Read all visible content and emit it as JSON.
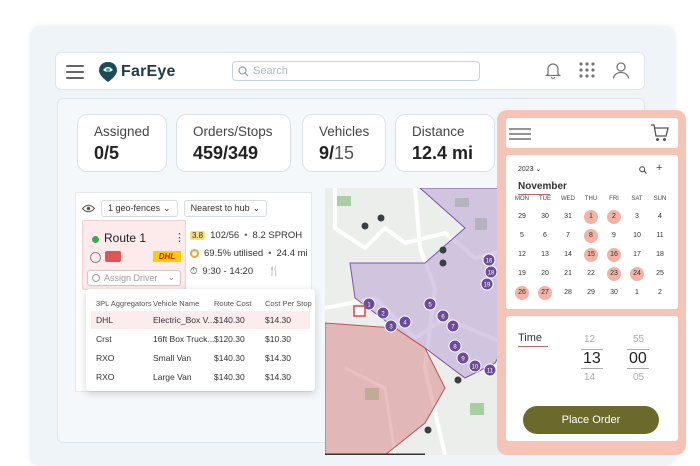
{
  "app": {
    "logo_text": "FarEye"
  },
  "search": {
    "placeholder": "Search"
  },
  "stats": [
    {
      "label": "Assigned",
      "value": "0/5"
    },
    {
      "label": "Orders/Stops",
      "value": "459/349"
    },
    {
      "label": "Vehicles",
      "value_main": "9/",
      "value_muted": "15"
    },
    {
      "label": "Distance",
      "value": "12.4 mi"
    }
  ],
  "filters": {
    "geofences": "1 geo-fences",
    "sort": "Nearest to hub"
  },
  "route": {
    "name": "Route 1",
    "carrier": "DHL",
    "badge": "3.8",
    "orders": "102/56",
    "sproh": "8.2 SPROH",
    "utilised": "69.5% utilised",
    "distance": "24.4 mi",
    "time_window": "9:30 - 14:20",
    "assign_placeholder": "Assign Driver"
  },
  "aggregator_table": {
    "headers": [
      "3PL Aggregators",
      "Vehicle Name",
      "Route Cost",
      "Cost Per Stop"
    ],
    "rows": [
      [
        "DHL",
        "Electric_Box V...",
        "$140.30",
        "$14.30"
      ],
      [
        "Crst",
        "16ft Box Truck...",
        "$120.30",
        "$10.30"
      ],
      [
        "RXO",
        "Small Van",
        "$140.30",
        "$14.30"
      ],
      [
        "RXO",
        "Large Van",
        "$140.30",
        "$14.30"
      ]
    ]
  },
  "map_markers": [
    "1",
    "2",
    "3",
    "4",
    "5",
    "6",
    "7",
    "8",
    "9",
    "10",
    "11",
    "16",
    "18",
    "19"
  ],
  "calendar": {
    "year": "2023",
    "month": "November",
    "weekdays": [
      "MON",
      "TUE",
      "WED",
      "THU",
      "FRI",
      "SAT",
      "SUN"
    ],
    "weeks": [
      [
        "29",
        "30",
        "31",
        "1",
        "2",
        "3",
        "4"
      ],
      [
        "5",
        "6",
        "7",
        "8",
        "9",
        "10",
        "11"
      ],
      [
        "12",
        "13",
        "14",
        "15",
        "16",
        "17",
        "18"
      ],
      [
        "19",
        "20",
        "21",
        "22",
        "23",
        "24",
        "25"
      ],
      [
        "26",
        "27",
        "28",
        "29",
        "30",
        "1",
        "2"
      ]
    ]
  },
  "time": {
    "label": "Time",
    "hour_prev": "12",
    "hour": "13",
    "hour_next": "14",
    "min_prev": "55",
    "min": "00",
    "min_next": "05"
  },
  "place_order_label": "Place Order",
  "colors": {
    "accent": "#6b6a2c",
    "panel": "#f6c4b6",
    "highlight": "#f2b3a6"
  }
}
